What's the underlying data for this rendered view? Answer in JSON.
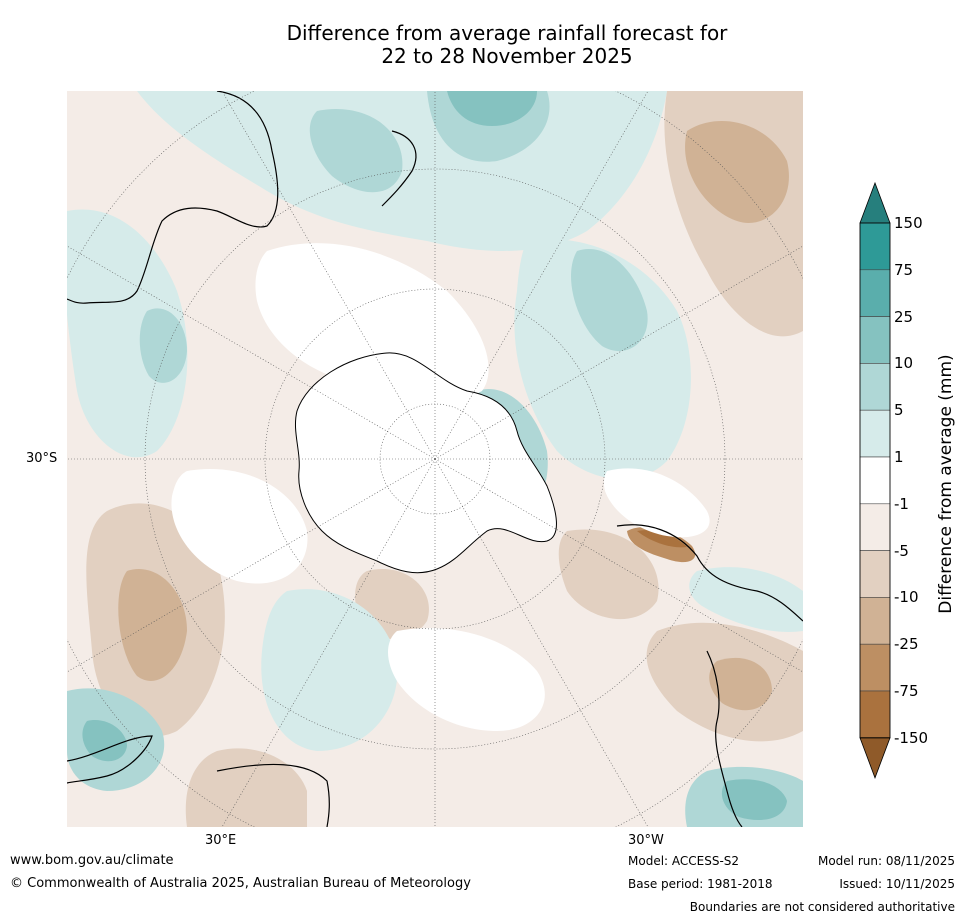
{
  "title": {
    "line1": "Difference from average rainfall forecast for",
    "line2": "22 to 28 November 2025"
  },
  "map": {
    "projection": "South polar stereographic",
    "lat_label": "30°S",
    "lon_labels": [
      "30°E",
      "30°W"
    ]
  },
  "colorbar": {
    "title": "Difference from average (mm)",
    "levels": [
      "150",
      "75",
      "25",
      "10",
      "5",
      "1",
      "-1",
      "-5",
      "-10",
      "-25",
      "-75",
      "-150"
    ],
    "bin_colors": [
      "#2e9a97",
      "#5aaeac",
      "#85c2c0",
      "#afd7d6",
      "#d6ebea",
      "#ffffff",
      "#f4ece7",
      "#e2d0c1",
      "#d0b295",
      "#bd8f63",
      "#aa723e"
    ],
    "over_color": "#267f7d",
    "under_color": "#8f5a29"
  },
  "footer": {
    "website": "www.bom.gov.au/climate",
    "copyright": "© Commonwealth of Australia 2025, Australian Bureau of Meteorology",
    "model": "Model: ACCESS-S2",
    "base_period": "Base period: 1981-2018",
    "model_run": "Model run: 08/11/2025",
    "issued": "Issued: 10/11/2025",
    "disclaimer": "Boundaries are not considered authoritative"
  }
}
